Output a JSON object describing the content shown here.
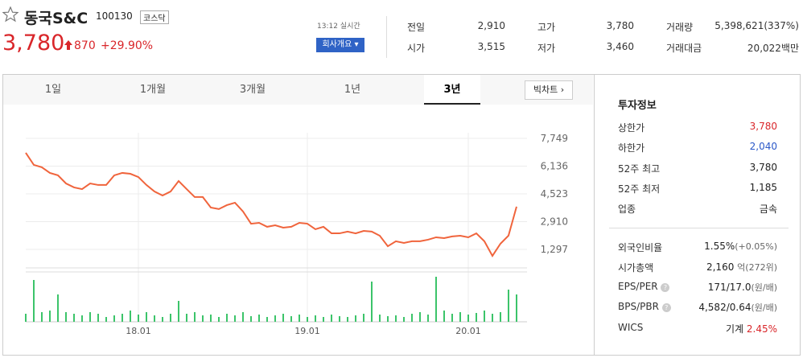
{
  "header": {
    "name": "동국S&C",
    "code": "100130",
    "market": "코스닥",
    "price": "3,780",
    "change": "870",
    "change_rate": "+29.90%",
    "time": "13:12 실시간",
    "company_button": "회사개요"
  },
  "quote": [
    {
      "label": "전일",
      "value": "2,910"
    },
    {
      "label": "고가",
      "value": "3,780"
    },
    {
      "label": "거래량",
      "value": "5,398,621(337%)"
    },
    {
      "label": "시가",
      "value": "3,515"
    },
    {
      "label": "저가",
      "value": "3,460"
    },
    {
      "label": "거래대금",
      "value": "20,022백만"
    }
  ],
  "tabs": [
    "1일",
    "1개월",
    "3개월",
    "1년",
    "3년"
  ],
  "big_chart": "빅차트",
  "chart_data": {
    "type": "line",
    "grid": true,
    "categories": [
      null,
      null,
      null,
      null,
      null,
      null,
      null,
      null,
      null,
      null,
      null,
      null,
      null,
      null,
      "18.01",
      null,
      null,
      null,
      null,
      null,
      null,
      null,
      null,
      null,
      null,
      null,
      null,
      null,
      null,
      null,
      null,
      null,
      null,
      null,
      null,
      "19.01",
      null,
      null,
      null,
      null,
      null,
      null,
      null,
      null,
      null,
      null,
      null,
      null,
      null,
      null,
      null,
      null,
      null,
      null,
      null,
      "20.01",
      null,
      null,
      null,
      null,
      null,
      null
    ],
    "series": [
      {
        "color": "#f0643c",
        "values": [
          6910,
          6210,
          6070,
          5740,
          5600,
          5130,
          4900,
          4800,
          5130,
          5040,
          5040,
          5600,
          5740,
          5690,
          5500,
          5040,
          4660,
          4430,
          4660,
          5270,
          4800,
          4340,
          4340,
          3730,
          3640,
          3870,
          4010,
          3500,
          2790,
          2840,
          2610,
          2700,
          2560,
          2610,
          2840,
          2790,
          2470,
          2610,
          2230,
          2230,
          2330,
          2230,
          2370,
          2330,
          2090,
          1480,
          1770,
          1670,
          1770,
          1770,
          1860,
          2000,
          1950,
          2050,
          2090,
          2000,
          2230,
          1770,
          920,
          1630,
          2100,
          3780
        ]
      }
    ],
    "volume": {
      "color": "#3cc46a",
      "values": [
        10,
        52,
        12,
        14,
        34,
        12,
        10,
        8,
        12,
        10,
        6,
        8,
        10,
        14,
        9,
        12,
        8,
        6,
        10,
        26,
        10,
        12,
        8,
        9,
        6,
        10,
        8,
        12,
        7,
        9,
        6,
        8,
        10,
        7,
        9,
        6,
        8,
        6,
        9,
        7,
        6,
        8,
        10,
        50,
        9,
        7,
        8,
        6,
        10,
        12,
        9,
        56,
        14,
        10,
        12,
        9,
        11,
        14,
        10,
        12,
        40,
        34
      ]
    },
    "ylim": [
      400,
      8000
    ],
    "yticks": [
      {
        "value": 7749,
        "label": "7,749"
      },
      {
        "value": 6136,
        "label": "6,136"
      },
      {
        "value": 4523,
        "label": "4,523"
      },
      {
        "value": 2910,
        "label": "2,910"
      },
      {
        "value": 1297,
        "label": "1,297"
      }
    ]
  },
  "invest": {
    "title": "투자정보",
    "help_icon": "?",
    "rows1": [
      {
        "label": "상한가",
        "value": "3,780"
      },
      {
        "label": "하한가",
        "value": "2,040"
      },
      {
        "label": "52주 최고",
        "value": "3,780"
      },
      {
        "label": "52주 최저",
        "value": "1,185"
      },
      {
        "label": "업종",
        "value": "금속"
      }
    ],
    "rows2": [
      {
        "label": "외국인비율",
        "value": "1.55%",
        "note": "(+0.05%)"
      },
      {
        "label": "시가총액",
        "value": "2,160",
        "note": "억(272위)"
      },
      {
        "label": "EPS/PER",
        "value": "171/17.0",
        "note": "(원/배)"
      },
      {
        "label": "BPS/PBR",
        "value": "4,582/0.64",
        "note": "(원/배)"
      },
      {
        "label": "WICS",
        "value": "기계",
        "note": "2.45%"
      }
    ]
  }
}
